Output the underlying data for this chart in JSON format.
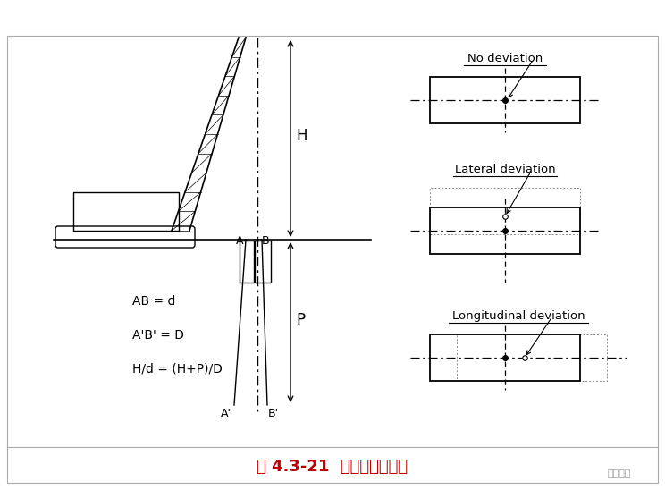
{
  "bg_color": "#ffffff",
  "title": "图 4.3-21  垂直度检测原理",
  "title_color": "#c00000",
  "title_fontsize": 13,
  "text_color": "#000000",
  "formula1": "AB = d",
  "formula2": "A'B' = D",
  "formula3": "H/d = (H+P)/D",
  "label_H": "H",
  "label_P": "P",
  "label_A": "A",
  "label_B": "B",
  "label_Ap": "A'",
  "label_Bp": "B'",
  "box_label1": "No deviation",
  "box_label2": "Lateral deviation",
  "box_label3": "Longitudinal deviation",
  "border_color": "#aaaaaa",
  "watermark": "筑龙岩土"
}
